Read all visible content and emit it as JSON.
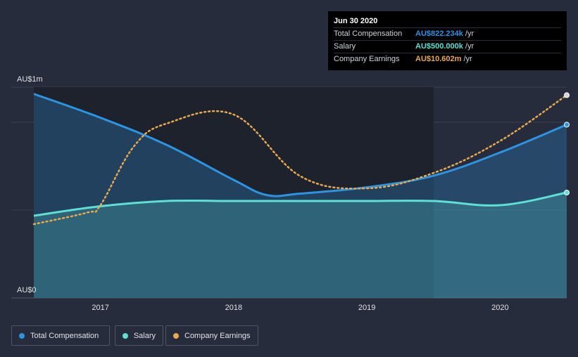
{
  "tooltip": {
    "date": "Jun 30 2020",
    "rows": [
      {
        "label": "Total Compensation",
        "value": "AU$822.234k",
        "unit": "/yr",
        "color": "#2b94e3"
      },
      {
        "label": "Salary",
        "value": "AU$500.000k",
        "unit": "/yr",
        "color": "#5ee0d4"
      },
      {
        "label": "Company Earnings",
        "value": "AU$10.602m",
        "unit": "/yr",
        "color": "#e9a94f"
      }
    ]
  },
  "legend": [
    {
      "label": "Total Compensation",
      "color": "#2b94e3"
    },
    {
      "label": "Salary",
      "color": "#5ee0d4"
    },
    {
      "label": "Company Earnings",
      "color": "#e9a94f"
    }
  ],
  "chart_data": {
    "type": "line",
    "y_tick_labels": [
      "AU$1m",
      "AU$0"
    ],
    "y_range_k": [
      0,
      1000
    ],
    "x_range": [
      2016.5,
      2020.5
    ],
    "x_ticks": [
      2017,
      2018,
      2019,
      2020
    ],
    "x_tick_labels": [
      "2017",
      "2018",
      "2019",
      "2020"
    ],
    "series": [
      {
        "name": "Total Compensation",
        "color": "#2b94e3",
        "units": "AU$k",
        "style": "solid-area",
        "points": [
          [
            2016.5,
            968
          ],
          [
            2017.0,
            855
          ],
          [
            2017.5,
            725
          ],
          [
            2018.0,
            560
          ],
          [
            2018.25,
            488
          ],
          [
            2018.5,
            495
          ],
          [
            2019.0,
            525
          ],
          [
            2019.5,
            580
          ],
          [
            2020.0,
            690
          ],
          [
            2020.5,
            822
          ]
        ]
      },
      {
        "name": "Salary",
        "color": "#5ee0d4",
        "units": "AU$k",
        "style": "solid-area",
        "points": [
          [
            2016.5,
            390
          ],
          [
            2017.0,
            435
          ],
          [
            2017.5,
            460
          ],
          [
            2018.0,
            460
          ],
          [
            2018.5,
            460
          ],
          [
            2019.0,
            460
          ],
          [
            2019.5,
            460
          ],
          [
            2020.0,
            440
          ],
          [
            2020.5,
            500
          ]
        ]
      },
      {
        "name": "Company Earnings",
        "color": "#e9a94f",
        "units": "scaled to axis",
        "style": "dotted",
        "points": [
          [
            2016.5,
            350
          ],
          [
            2016.9,
            405
          ],
          [
            2017.0,
            440
          ],
          [
            2017.25,
            718
          ],
          [
            2017.5,
            828
          ],
          [
            2018.0,
            870
          ],
          [
            2018.5,
            578
          ],
          [
            2019.0,
            520
          ],
          [
            2019.5,
            593
          ],
          [
            2020.0,
            745
          ],
          [
            2020.5,
            962
          ]
        ]
      }
    ],
    "forecast_shade_from": 2019.5
  }
}
